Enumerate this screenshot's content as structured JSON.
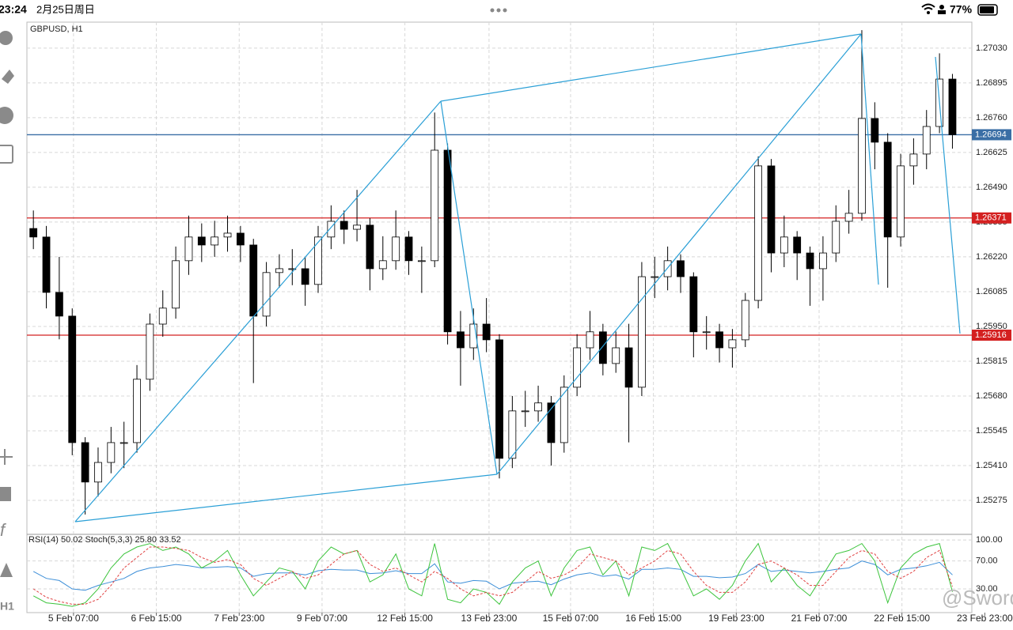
{
  "status_bar": {
    "time": "23:24",
    "date": "2月25日周日",
    "battery": "77%"
  },
  "toolbar": {
    "timeframe": "H1"
  },
  "watermark": "@Sword",
  "chart_data": [
    {
      "type": "candlestick",
      "title": "GBPUSD, H1",
      "grid": true,
      "up_color": "#ffffff",
      "down_color": "#000000",
      "xlim": [
        -0.5,
        72.5
      ],
      "xticks": [
        {
          "value": 3.1,
          "label": "5 Feb 07:00"
        },
        {
          "value": 9.5,
          "label": "6 Feb 15:00"
        },
        {
          "value": 15.9,
          "label": "7 Feb 23:00"
        },
        {
          "value": 22.3,
          "label": "9 Feb 07:00"
        },
        {
          "value": 28.7,
          "label": "12 Feb 15:00"
        },
        {
          "value": 35.2,
          "label": "13 Feb 23:00"
        },
        {
          "value": 41.5,
          "label": "15 Feb 07:00"
        },
        {
          "value": 47.9,
          "label": "16 Feb 15:00"
        },
        {
          "value": 54.3,
          "label": "19 Feb 23:00"
        },
        {
          "value": 60.7,
          "label": "21 Feb 07:00"
        },
        {
          "value": 67.1,
          "label": "22 Feb 15:00"
        },
        {
          "value": 73.5,
          "label": "23 Feb 23:00"
        }
      ],
      "ylim": [
        1.25146,
        1.27131
      ],
      "yticks": [
        1.25275,
        {
          "value": 1.2541,
          "label": "1.25410"
        },
        1.25545,
        {
          "value": 1.2568,
          "label": "1.25680"
        },
        1.25815,
        {
          "value": 1.2595,
          "label": "1.25950"
        },
        1.26085,
        {
          "value": 1.2622,
          "label": "1.26220"
        },
        1.26355,
        {
          "value": 1.2649,
          "label": "1.26490"
        },
        1.26625,
        {
          "value": 1.2676,
          "label": "1.26760"
        },
        1.26895,
        {
          "value": 1.2703,
          "label": "1.27030"
        }
      ],
      "hlines": [
        {
          "value": 1.26694,
          "color": "#3a6ea5"
        },
        {
          "value": 1.26371,
          "color": "#d42020"
        },
        {
          "value": 1.25916,
          "color": "#d42020"
        }
      ],
      "open": [
        1.2633,
        1.26297,
        1.26082,
        1.2599,
        1.25499,
        1.25346,
        1.25422,
        1.25499,
        1.25499,
        1.25745,
        1.25959,
        1.26021,
        1.26205,
        1.26297,
        1.26266,
        1.26297,
        1.26312,
        1.26266,
        1.2599,
        1.26159,
        1.26174,
        1.26174,
        1.26113,
        1.26297,
        1.26358,
        1.26327,
        1.26343,
        1.26174,
        1.26205,
        1.26297,
        1.26205,
        1.26205,
        1.26634,
        1.25929,
        1.25867,
        1.25959,
        1.25898,
        1.25438,
        1.25622,
        1.25622,
        1.25653,
        1.25499,
        1.25714,
        1.25867,
        1.25929,
        1.25806,
        1.25867,
        1.25714,
        1.26143,
        1.26143,
        1.26205,
        1.26143,
        1.25929,
        1.25929,
        1.25867,
        1.25898,
        1.26051,
        1.26573,
        1.26235,
        1.26297,
        1.26235,
        1.26174,
        1.26235,
        1.26358,
        1.26389,
        1.26757,
        1.26665,
        1.26297,
        1.26573,
        1.26619,
        1.26726,
        1.2691
      ],
      "high": [
        1.264,
        1.2634,
        1.2622,
        1.2602,
        1.2552,
        1.2548,
        1.2556,
        1.2558,
        1.258,
        1.26,
        1.2609,
        1.2626,
        1.2638,
        1.2635,
        1.2636,
        1.2638,
        1.2634,
        1.2629,
        1.262,
        1.2623,
        1.2625,
        1.2622,
        1.2634,
        1.2642,
        1.264,
        1.2648,
        1.2637,
        1.263,
        1.264,
        1.2632,
        1.2626,
        1.2678,
        1.2666,
        1.2601,
        1.2602,
        1.2606,
        1.2592,
        1.2568,
        1.257,
        1.2572,
        1.2568,
        1.2576,
        1.2592,
        1.2601,
        1.2596,
        1.2593,
        1.2596,
        1.262,
        1.2622,
        1.2626,
        1.2623,
        1.2616,
        1.2599,
        1.2596,
        1.2594,
        1.2608,
        1.2661,
        1.266,
        1.2638,
        1.2632,
        1.2626,
        1.263,
        1.2642,
        1.2648,
        1.271,
        1.2682,
        1.267,
        1.2662,
        1.2668,
        1.2679,
        1.2701,
        1.2693
      ],
      "low": [
        1.2625,
        1.2602,
        1.259,
        1.2545,
        1.2522,
        1.2529,
        1.2538,
        1.254,
        1.2546,
        1.257,
        1.2591,
        1.2598,
        1.2615,
        1.262,
        1.2622,
        1.2624,
        1.262,
        1.2573,
        1.2595,
        1.261,
        1.2611,
        1.2603,
        1.2608,
        1.2625,
        1.2627,
        1.2628,
        1.2609,
        1.2613,
        1.2617,
        1.2615,
        1.2608,
        1.2618,
        1.2588,
        1.2572,
        1.2582,
        1.2585,
        1.2536,
        1.254,
        1.2556,
        1.2558,
        1.2541,
        1.2546,
        1.2568,
        1.2582,
        1.2576,
        1.2577,
        1.255,
        1.2568,
        1.2606,
        1.2609,
        1.2608,
        1.2583,
        1.2586,
        1.2581,
        1.2579,
        1.2587,
        1.2602,
        1.2616,
        1.2618,
        1.2613,
        1.2603,
        1.2605,
        1.262,
        1.2631,
        1.2636,
        1.2656,
        1.261,
        1.2626,
        1.265,
        1.2656,
        1.267,
        1.2664
      ],
      "close": [
        1.26297,
        1.26082,
        1.2599,
        1.25499,
        1.25346,
        1.25422,
        1.25499,
        1.25499,
        1.25745,
        1.25959,
        1.26021,
        1.26205,
        1.26297,
        1.26266,
        1.26297,
        1.26312,
        1.26266,
        1.2599,
        1.26159,
        1.26174,
        1.26174,
        1.26113,
        1.26297,
        1.26358,
        1.26327,
        1.26343,
        1.26174,
        1.26205,
        1.26297,
        1.26205,
        1.26205,
        1.26634,
        1.25929,
        1.25867,
        1.25959,
        1.25898,
        1.25438,
        1.25622,
        1.25622,
        1.25653,
        1.25499,
        1.25714,
        1.25867,
        1.25929,
        1.25806,
        1.25867,
        1.25714,
        1.26143,
        1.26143,
        1.26205,
        1.26143,
        1.25929,
        1.25929,
        1.25867,
        1.25898,
        1.26051,
        1.26573,
        1.26235,
        1.26297,
        1.26235,
        1.26174,
        1.26235,
        1.26358,
        1.26389,
        1.26757,
        1.26665,
        1.26297,
        1.26573,
        1.26619,
        1.26726,
        1.2691,
        1.26694
      ]
    },
    {
      "type": "line",
      "title": "RSI(14) 50.02 Stoch(5,3,3) 25.80 33.52",
      "grid": true,
      "xlim": [
        -0.5,
        72.5
      ],
      "ylim": [
        -4,
        107
      ],
      "yticks": [
        {
          "value": 100,
          "label": "100.00"
        },
        {
          "value": 70,
          "label": "70.00"
        },
        {
          "value": 30,
          "label": "30.00"
        }
      ],
      "series": [
        {
          "color": "#3d8fd8",
          "dash": false,
          "values": [
            55,
            45,
            42,
            30,
            28,
            35,
            40,
            45,
            55,
            60,
            62,
            65,
            63,
            60,
            61,
            62,
            60,
            48,
            52,
            53,
            53,
            50,
            56,
            58,
            57,
            57,
            52,
            53,
            56,
            52,
            52,
            66,
            40,
            38,
            42,
            41,
            30,
            38,
            40,
            41,
            36,
            44,
            50,
            53,
            48,
            50,
            44,
            58,
            58,
            60,
            58,
            48,
            48,
            46,
            47,
            52,
            65,
            55,
            57,
            55,
            53,
            55,
            58,
            60,
            70,
            65,
            50,
            58,
            60,
            63,
            68,
            50.02
          ]
        },
        {
          "color": "#3cc43c",
          "dash": false,
          "values": [
            20,
            10,
            8,
            5,
            10,
            30,
            60,
            80,
            90,
            95,
            85,
            90,
            80,
            60,
            70,
            85,
            50,
            20,
            40,
            60,
            55,
            30,
            70,
            90,
            80,
            85,
            40,
            50,
            80,
            30,
            20,
            95,
            15,
            10,
            30,
            25,
            8,
            40,
            60,
            70,
            20,
            60,
            85,
            90,
            50,
            70,
            20,
            90,
            85,
            95,
            60,
            20,
            30,
            15,
            35,
            70,
            95,
            40,
            60,
            35,
            20,
            50,
            80,
            85,
            95,
            70,
            10,
            60,
            80,
            90,
            95,
            25.8
          ]
        },
        {
          "color": "#e04040",
          "dash": true,
          "values": [
            30,
            18,
            12,
            8,
            8,
            15,
            35,
            60,
            75,
            90,
            90,
            88,
            85,
            75,
            68,
            72,
            65,
            45,
            35,
            45,
            55,
            45,
            50,
            65,
            80,
            85,
            65,
            55,
            60,
            50,
            40,
            55,
            45,
            30,
            20,
            25,
            20,
            25,
            40,
            55,
            45,
            50,
            60,
            80,
            75,
            70,
            50,
            60,
            70,
            85,
            80,
            55,
            35,
            25,
            25,
            40,
            65,
            70,
            60,
            50,
            35,
            35,
            55,
            75,
            85,
            80,
            55,
            45,
            55,
            75,
            85,
            33.52
          ]
        }
      ]
    }
  ]
}
